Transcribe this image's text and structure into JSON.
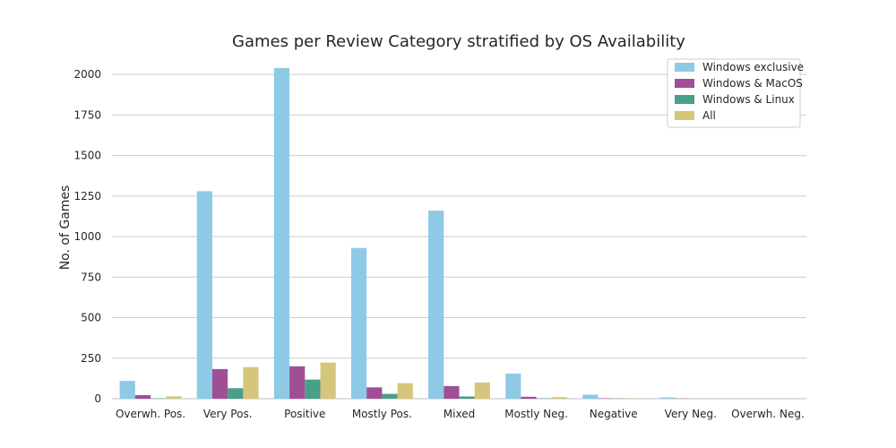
{
  "chart_data": {
    "type": "bar",
    "title": "Games per Review Category stratified by OS Availability",
    "xlabel": "",
    "ylabel": "No. of Games",
    "ylim": [
      0,
      2100
    ],
    "yticks": [
      0,
      250,
      500,
      750,
      1000,
      1250,
      1500,
      1750,
      2000
    ],
    "grid": true,
    "legend_position": "top-right",
    "categories": [
      "Overwh. Pos.",
      "Very Pos.",
      "Positive",
      "Mostly Pos.",
      "Mixed",
      "Mostly Neg.",
      "Negative",
      "Very Neg.",
      "Overwh. Neg."
    ],
    "series": [
      {
        "name": "Windows exclusive",
        "color": "#8ecae6",
        "values": [
          110,
          1280,
          2040,
          930,
          1160,
          155,
          25,
          8,
          1
        ]
      },
      {
        "name": "Windows & MacOS",
        "color": "#a04f97",
        "values": [
          22,
          183,
          200,
          70,
          78,
          12,
          2,
          1,
          0
        ]
      },
      {
        "name": "Windows & Linux",
        "color": "#4a9f8a",
        "values": [
          2,
          65,
          118,
          30,
          14,
          2,
          1,
          0,
          0
        ]
      },
      {
        "name": "All",
        "color": "#d5c67c",
        "values": [
          15,
          195,
          223,
          96,
          100,
          10,
          2,
          1,
          0
        ]
      }
    ]
  }
}
